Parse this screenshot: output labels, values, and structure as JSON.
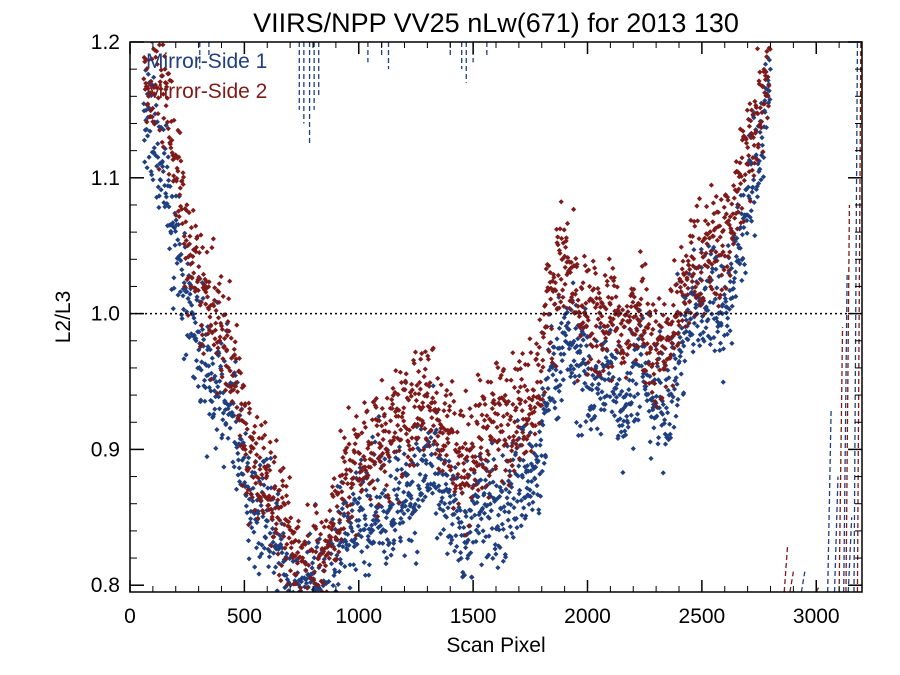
{
  "chart_data": {
    "type": "scatter",
    "title": "VIIRS/NPP VV25 nLw(671) for 2013 130",
    "xlabel": "Scan Pixel",
    "ylabel": "L2/L3",
    "xlim": [
      0,
      3200
    ],
    "ylim": [
      0.795,
      1.2
    ],
    "xticks": [
      0,
      500,
      1000,
      1500,
      2000,
      2500,
      3000
    ],
    "yticks": [
      0.8,
      0.9,
      1.0,
      1.1,
      1.2
    ],
    "x_tick_labels": [
      "0",
      "500",
      "1000",
      "1500",
      "2000",
      "2500",
      "3000"
    ],
    "y_tick_labels": [
      "0.8",
      "0.9",
      "1.0",
      "1.1",
      "1.2"
    ],
    "reference_line": {
      "y": 1.0,
      "style": "dotted"
    },
    "legend_position": "top-left",
    "grid": false,
    "series": [
      {
        "name": "Mirror-Side 1",
        "color": "#1f3f7f",
        "marker": "diamond",
        "trend": [
          [
            60,
            1.14
          ],
          [
            150,
            1.11
          ],
          [
            250,
            1.0
          ],
          [
            350,
            0.95
          ],
          [
            450,
            0.93
          ],
          [
            520,
            0.86
          ],
          [
            600,
            0.85
          ],
          [
            680,
            0.81
          ],
          [
            760,
            0.79
          ],
          [
            850,
            0.8
          ],
          [
            950,
            0.84
          ],
          [
            1050,
            0.86
          ],
          [
            1150,
            0.86
          ],
          [
            1250,
            0.87
          ],
          [
            1300,
            0.89
          ],
          [
            1400,
            0.85
          ],
          [
            1450,
            0.84
          ],
          [
            1550,
            0.86
          ],
          [
            1600,
            0.85
          ],
          [
            1700,
            0.88
          ],
          [
            1790,
            0.88
          ],
          [
            1830,
            0.95
          ],
          [
            1900,
            0.98
          ],
          [
            1950,
            0.97
          ],
          [
            2020,
            0.94
          ],
          [
            2100,
            0.96
          ],
          [
            2160,
            0.93
          ],
          [
            2230,
            0.97
          ],
          [
            2300,
            0.93
          ],
          [
            2350,
            0.94
          ],
          [
            2450,
            1.0
          ],
          [
            2550,
            1.02
          ],
          [
            2600,
            1.0
          ],
          [
            2700,
            1.08
          ],
          [
            2800,
            1.17
          ]
        ],
        "spread": 0.022,
        "dashed_traces": [
          {
            "x": 305,
            "y_low": 1.18
          },
          {
            "x": 345,
            "y_low": 1.19
          },
          {
            "x": 740,
            "y_low": 1.15
          },
          {
            "x": 760,
            "y_low": 1.14
          },
          {
            "x": 785,
            "y_low": 1.125
          },
          {
            "x": 805,
            "y_low": 1.15
          },
          {
            "x": 825,
            "y_low": 1.16
          },
          {
            "x": 1040,
            "y_low": 1.185
          },
          {
            "x": 1100,
            "y_low": 1.19
          },
          {
            "x": 1130,
            "y_low": 1.18
          },
          {
            "x": 1400,
            "y_low": 1.19
          },
          {
            "x": 1450,
            "y_low": 1.18
          },
          {
            "x": 1470,
            "y_low": 1.17
          },
          {
            "x": 1500,
            "y_low": 1.185
          },
          {
            "x": 1560,
            "y_low": 1.19
          }
        ],
        "edge_traces": [
          {
            "x": 2935,
            "y_high": 0.81
          },
          {
            "x": 3050,
            "y_high": 0.93
          },
          {
            "x": 3080,
            "y_high": 0.88
          },
          {
            "x": 3120,
            "y_high": 1.03
          },
          {
            "x": 3140,
            "y_high": 0.85
          },
          {
            "x": 3165,
            "y_high": 1.2
          }
        ]
      },
      {
        "name": "Mirror-Side 2",
        "color": "#7f1a1a",
        "marker": "diamond",
        "trend": [
          [
            60,
            1.18
          ],
          [
            150,
            1.17
          ],
          [
            250,
            1.05
          ],
          [
            350,
            1.0
          ],
          [
            450,
            0.97
          ],
          [
            520,
            0.89
          ],
          [
            600,
            0.88
          ],
          [
            680,
            0.84
          ],
          [
            760,
            0.81
          ],
          [
            850,
            0.82
          ],
          [
            950,
            0.88
          ],
          [
            1050,
            0.9
          ],
          [
            1150,
            0.91
          ],
          [
            1250,
            0.93
          ],
          [
            1300,
            0.94
          ],
          [
            1400,
            0.91
          ],
          [
            1450,
            0.89
          ],
          [
            1550,
            0.91
          ],
          [
            1600,
            0.92
          ],
          [
            1700,
            0.93
          ],
          [
            1790,
            0.95
          ],
          [
            1830,
            1.01
          ],
          [
            1900,
            1.04
          ],
          [
            1950,
            1.01
          ],
          [
            2020,
            0.99
          ],
          [
            2100,
            1.0
          ],
          [
            2160,
            0.98
          ],
          [
            2230,
            1.01
          ],
          [
            2300,
            0.97
          ],
          [
            2350,
            0.98
          ],
          [
            2450,
            1.03
          ],
          [
            2550,
            1.05
          ],
          [
            2600,
            1.05
          ],
          [
            2700,
            1.12
          ],
          [
            2800,
            1.19
          ]
        ],
        "spread": 0.022,
        "dashed_traces": [],
        "edge_traces": [
          {
            "x": 2860,
            "y_high": 0.83
          },
          {
            "x": 2885,
            "y_high": 0.81
          },
          {
            "x": 3000,
            "y_high": 0.8
          },
          {
            "x": 3100,
            "y_high": 0.99
          },
          {
            "x": 3130,
            "y_high": 1.08
          },
          {
            "x": 3180,
            "y_high": 1.2
          }
        ]
      }
    ]
  }
}
